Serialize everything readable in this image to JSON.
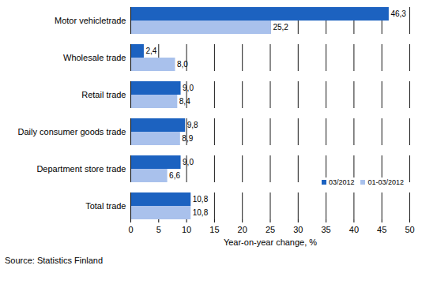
{
  "chart_data": {
    "type": "bar",
    "orientation": "horizontal",
    "categories": [
      "Motor vehicletrade",
      "Wholesale trade",
      "Retail trade",
      "Daily consumer goods trade",
      "Department store trade",
      "Total trade"
    ],
    "series": [
      {
        "name": "03/2012",
        "color": "#1c62c0",
        "values": [
          46.3,
          2.4,
          9.0,
          9.8,
          9.0,
          10.8
        ],
        "value_labels": [
          "46,3",
          "2,4",
          "9,0",
          "9,8",
          "9,0",
          "10,8"
        ]
      },
      {
        "name": "01-03/2012",
        "color": "#a9c1ec",
        "values": [
          25.2,
          8.0,
          8.4,
          8.9,
          6.6,
          10.8
        ],
        "value_labels": [
          "25,2",
          "8,0",
          "8,4",
          "8,9",
          "6,6",
          "10,8"
        ]
      }
    ],
    "xlabel": "Year-on-year change, %",
    "xlim": [
      0,
      50
    ],
    "xticks": [
      0,
      5,
      10,
      15,
      20,
      25,
      30,
      35,
      40,
      45,
      50
    ],
    "grid": true,
    "data_labels": true,
    "legend": "lower right",
    "caption": "Source: Statistics Finland"
  }
}
